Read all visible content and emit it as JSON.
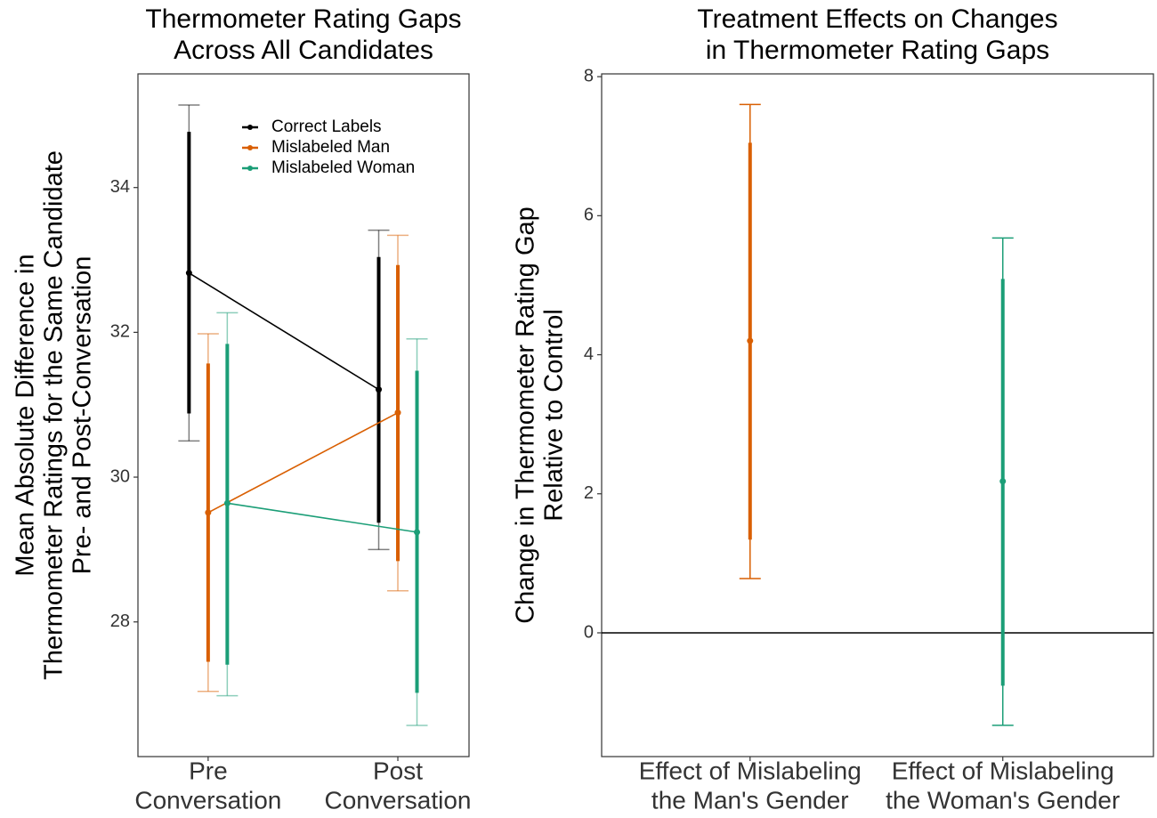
{
  "chart_data": [
    {
      "type": "errorbar",
      "title": [
        "Thermometer Rating Gaps",
        "Across All Candidates"
      ],
      "ylabel": [
        "Mean Absolute Difference in",
        "Thermometer Ratings for the Same Candidate",
        "Pre- and Post-Conversation"
      ],
      "categories": [
        [
          "Pre",
          "Conversation"
        ],
        [
          "Post",
          "Conversation"
        ]
      ],
      "ylim": [
        26.14,
        35.57
      ],
      "yticks": [
        28,
        30,
        32,
        34
      ],
      "connect": true,
      "legend": "top-left",
      "series": [
        {
          "name": "Correct Labels",
          "color": "#000000",
          "values": [
            32.82,
            31.21
          ],
          "ci_outer_low": [
            30.5,
            29.0
          ],
          "ci_outer_high": [
            35.14,
            33.41
          ],
          "ci_inner_low": [
            30.88,
            29.37
          ],
          "ci_inner_high": [
            34.77,
            33.04
          ]
        },
        {
          "name": "Mislabeled Man",
          "color": "#d95f02",
          "values": [
            29.51,
            30.89
          ],
          "ci_outer_low": [
            27.04,
            28.43
          ],
          "ci_outer_high": [
            31.98,
            33.34
          ],
          "ci_inner_low": [
            27.45,
            28.84
          ],
          "ci_inner_high": [
            31.57,
            32.93
          ]
        },
        {
          "name": "Mislabeled Woman",
          "color": "#1b9e77",
          "values": [
            29.64,
            29.24
          ],
          "ci_outer_low": [
            26.98,
            26.57
          ],
          "ci_outer_high": [
            32.27,
            31.91
          ],
          "ci_inner_low": [
            27.41,
            27.02
          ],
          "ci_inner_high": [
            31.84,
            31.47
          ]
        }
      ]
    },
    {
      "type": "errorbar",
      "title": [
        "Treatment Effects on Changes",
        "in Thermometer Rating Gaps"
      ],
      "ylabel": [
        "Change in Thermometer Rating Gap",
        "Relative to Control"
      ],
      "categories": [
        [
          "Effect of Mislabeling",
          "the Man's Gender"
        ],
        [
          "Effect of Mislabeling",
          "the Woman's Gender"
        ]
      ],
      "ylim": [
        -1.78,
        8.04
      ],
      "yticks": [
        0,
        2,
        4,
        6,
        8
      ],
      "hline": 0,
      "connect": false,
      "series": [
        {
          "colors": [
            "#d95f02",
            "#1b9e77"
          ],
          "values": [
            4.2,
            2.18
          ],
          "ci_outer_low": [
            0.78,
            -1.33
          ],
          "ci_outer_high": [
            7.6,
            5.68
          ],
          "ci_inner_low": [
            1.34,
            -0.76
          ],
          "ci_inner_high": [
            7.05,
            5.09
          ]
        }
      ]
    }
  ]
}
